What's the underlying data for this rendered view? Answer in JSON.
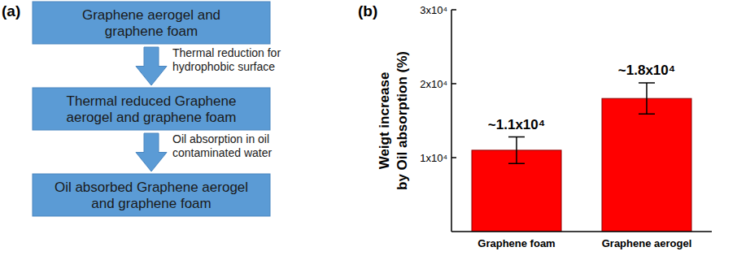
{
  "panels": {
    "a": "(a)",
    "b": "(b)"
  },
  "diagram": {
    "boxes": [
      {
        "lines": [
          "Graphene aerogel and",
          "graphene foam"
        ]
      },
      {
        "lines": [
          "Thermal reduced Graphene",
          "aerogel and graphene foam"
        ]
      },
      {
        "lines": [
          "Oil absorbed Graphene aerogel",
          "and graphene foam"
        ]
      }
    ],
    "arrows": [
      {
        "lines": [
          "Thermal reduction for",
          "hydrophobic surface"
        ]
      },
      {
        "lines": [
          "Oil absorption in oil",
          "contaminated water"
        ]
      }
    ]
  },
  "chart_data": {
    "type": "bar",
    "ylabel": [
      "Weigt increase",
      "by Oil absorption (%)"
    ],
    "categories": [
      "Graphene foam",
      "Graphene aerogel"
    ],
    "values": [
      11000,
      18000
    ],
    "errors": [
      1800,
      2100
    ],
    "value_labels": [
      "~1.1x10⁴",
      "~1.8x10⁴"
    ],
    "data_labels": true,
    "color": "#ff0000",
    "ylim": [
      0,
      30000
    ],
    "yticks": [
      {
        "value": 10000,
        "label": "1x10⁴"
      },
      {
        "value": 20000,
        "label": "2x10⁴"
      },
      {
        "value": 30000,
        "label": "3x10⁴"
      }
    ],
    "grid": false
  }
}
